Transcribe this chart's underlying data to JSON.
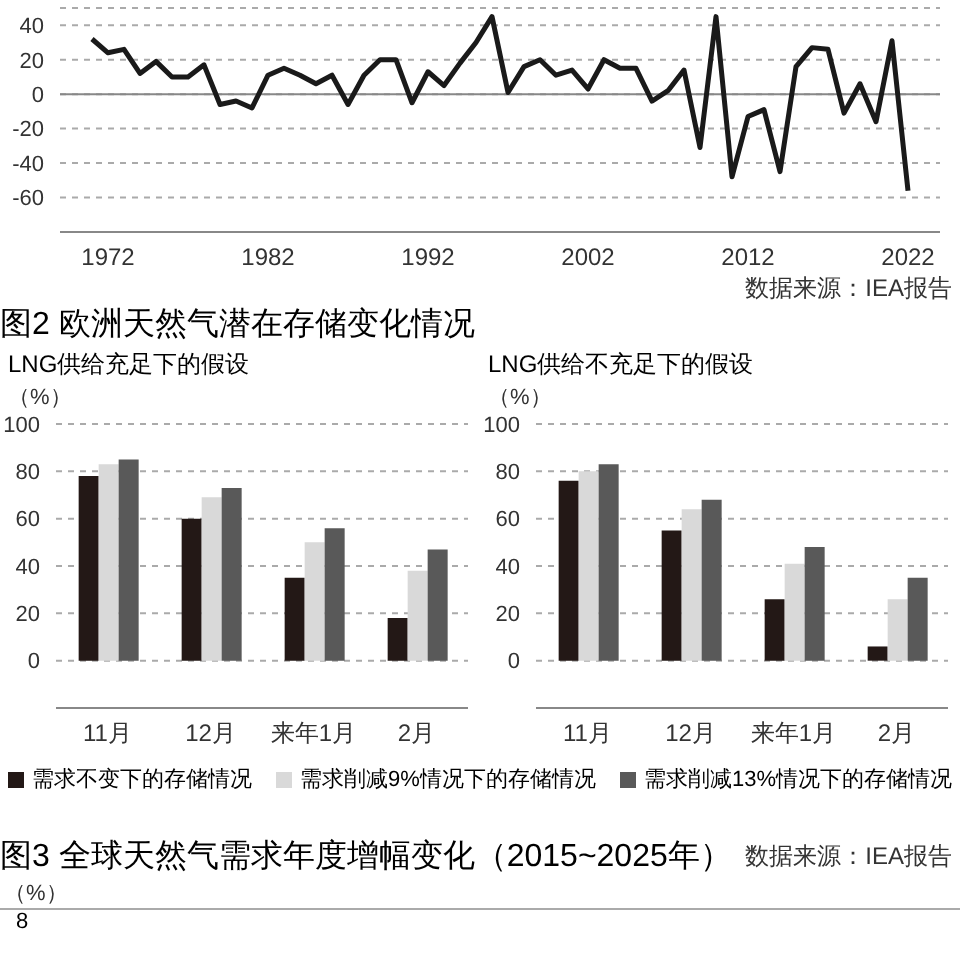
{
  "chart_data": [
    {
      "type": "line",
      "x": [
        1971,
        1972,
        1973,
        1974,
        1975,
        1976,
        1977,
        1978,
        1979,
        1980,
        1981,
        1982,
        1983,
        1984,
        1985,
        1986,
        1987,
        1988,
        1989,
        1990,
        1991,
        1992,
        1993,
        1994,
        1995,
        1996,
        1997,
        1998,
        1999,
        2000,
        2001,
        2002,
        2003,
        2004,
        2005,
        2006,
        2007,
        2008,
        2009,
        2010,
        2011,
        2012,
        2013,
        2014,
        2015,
        2016,
        2017,
        2018,
        2019,
        2020,
        2021,
        2022
      ],
      "series": [
        {
          "color": "#1a1a1a",
          "values": [
            32,
            24,
            26,
            12,
            19,
            10,
            10,
            17,
            -6,
            -4,
            -8,
            11,
            15,
            11,
            6,
            11,
            -6,
            11,
            20,
            20,
            -5,
            13,
            5,
            18,
            30,
            45,
            1,
            16,
            20,
            11,
            14,
            3,
            20,
            15,
            15,
            -4,
            2,
            14,
            -31,
            45,
            -48,
            -13,
            -9,
            -45,
            16,
            27,
            26,
            -11,
            6,
            -16,
            31,
            -56
          ]
        }
      ],
      "xlim": [
        1969,
        2024
      ],
      "xticks": [
        1972,
        1982,
        1992,
        2002,
        2012,
        2022
      ],
      "ylim": [
        -80,
        50
      ],
      "yticks": [
        -60,
        -40,
        -20,
        0,
        20,
        40
      ],
      "grid": "y",
      "ref_lines": [
        {
          "axis": "y",
          "value": 0
        }
      ],
      "annotations": [
        "数据来源：IEA报告"
      ]
    },
    {
      "type": "bar",
      "title": "图2 欧洲天然气潜在存储变化情况",
      "subtitle": "LNG供给充足下的假设",
      "ylabel": "（%）",
      "categories": [
        "11月",
        "12月",
        "来年1月",
        "2月"
      ],
      "series": [
        {
          "name": "需求不变下的存储情况",
          "color": "#231816",
          "values": [
            78,
            60,
            35,
            18
          ]
        },
        {
          "name": "需求削减9%情况下的存储情况",
          "color": "#d9d9d9",
          "values": [
            83,
            69,
            50,
            38
          ]
        },
        {
          "name": "需求削减13%情况下的存储情况",
          "color": "#595959",
          "values": [
            85,
            73,
            56,
            47
          ]
        }
      ],
      "ylim": [
        -20,
        100
      ],
      "yticks": [
        0,
        20,
        40,
        60,
        80,
        100
      ],
      "grid": "y",
      "legend": "bottom"
    },
    {
      "type": "bar",
      "subtitle": "LNG供给不充足下的假设",
      "ylabel": "（%）",
      "categories": [
        "11月",
        "12月",
        "来年1月",
        "2月"
      ],
      "series": [
        {
          "color": "#231816",
          "values": [
            76,
            55,
            26,
            6
          ]
        },
        {
          "color": "#d9d9d9",
          "values": [
            80,
            64,
            41,
            26
          ]
        },
        {
          "color": "#595959",
          "values": [
            83,
            68,
            48,
            35
          ]
        }
      ],
      "ylim": [
        -20,
        100
      ],
      "yticks": [
        0,
        20,
        40,
        60,
        80,
        100
      ],
      "grid": "y",
      "annotations": [
        "数据来源：IEA报告"
      ]
    },
    {
      "type": "other",
      "title": "图3 全球天然气需求年度增幅变化（2015~2025年）",
      "ylabel": "（%）",
      "annotations": [
        "8"
      ]
    }
  ]
}
